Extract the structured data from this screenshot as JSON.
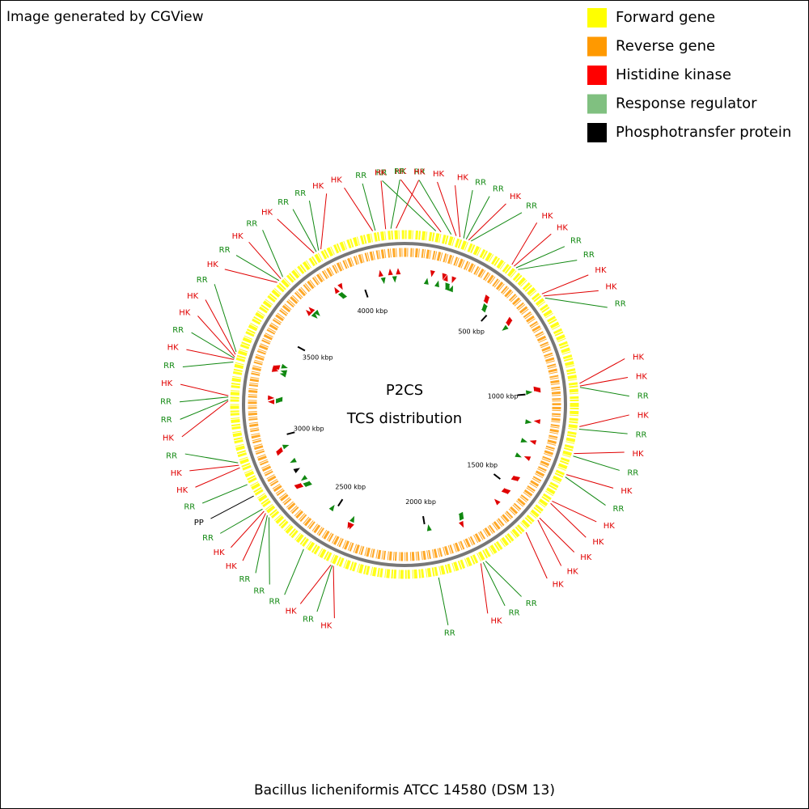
{
  "header": {
    "credit": "Image generated by CGView"
  },
  "legend": [
    {
      "label": "Forward gene",
      "color": "#ffff00"
    },
    {
      "label": "Reverse gene",
      "color": "#ff9900"
    },
    {
      "label": "Histidine kinase",
      "color": "#ff0000"
    },
    {
      "label": "Response regulator",
      "color": "#80c080"
    },
    {
      "label": "Phosphotransfer protein",
      "color": "#000000"
    }
  ],
  "map": {
    "title": "P2CS",
    "subtitle": "TCS distribution",
    "organism": "Bacillus licheniformis ATCC 14580 (DSM 13)",
    "genome_length_kbp": 4222,
    "type_colors": {
      "HK": "#e00000",
      "RR": "#118811",
      "PP": "#000000"
    },
    "ruler": [
      {
        "value": 500,
        "label": "500 kbp"
      },
      {
        "value": 1000,
        "label": "1000 kbp"
      },
      {
        "value": 1500,
        "label": "1500 kbp"
      },
      {
        "value": 2000,
        "label": "2000 kbp"
      },
      {
        "value": 2500,
        "label": "2500 kbp"
      },
      {
        "value": 3000,
        "label": "3000 kbp"
      },
      {
        "value": 3500,
        "label": "3500 kbp"
      },
      {
        "value": 4000,
        "label": "4000 kbp"
      }
    ],
    "features": [
      {
        "position": 120,
        "label": "RR"
      },
      {
        "position": 140,
        "label": "HK"
      },
      {
        "position": 180,
        "label": "RR"
      },
      {
        "position": 200,
        "label": "HK"
      },
      {
        "position": 215,
        "label": "HK"
      },
      {
        "position": 230,
        "label": "RR"
      },
      {
        "position": 240,
        "label": "RR"
      },
      {
        "position": 250,
        "label": "HK"
      },
      {
        "position": 260,
        "label": "RR"
      },
      {
        "position": 440,
        "label": "HK"
      },
      {
        "position": 450,
        "label": "HK"
      },
      {
        "position": 460,
        "label": "RR"
      },
      {
        "position": 470,
        "label": "RR"
      },
      {
        "position": 600,
        "label": "HK"
      },
      {
        "position": 610,
        "label": "HK"
      },
      {
        "position": 620,
        "label": "RR"
      },
      {
        "position": 975,
        "label": "HK"
      },
      {
        "position": 985,
        "label": "HK"
      },
      {
        "position": 990,
        "label": "RR"
      },
      {
        "position": 1140,
        "label": "HK"
      },
      {
        "position": 1150,
        "label": "RR"
      },
      {
        "position": 1245,
        "label": "HK"
      },
      {
        "position": 1255,
        "label": "RR"
      },
      {
        "position": 1330,
        "label": "HK"
      },
      {
        "position": 1340,
        "label": "RR"
      },
      {
        "position": 1445,
        "label": "HK"
      },
      {
        "position": 1455,
        "label": "HK"
      },
      {
        "position": 1525,
        "label": "HK"
      },
      {
        "position": 1535,
        "label": "HK"
      },
      {
        "position": 1600,
        "label": "HK"
      },
      {
        "position": 1790,
        "label": "RR"
      },
      {
        "position": 1800,
        "label": "RR"
      },
      {
        "position": 1810,
        "label": "HK"
      },
      {
        "position": 1980,
        "label": "RR"
      },
      {
        "position": 2390,
        "label": "HK"
      },
      {
        "position": 2395,
        "label": "RR"
      },
      {
        "position": 2400,
        "label": "HK"
      },
      {
        "position": 2520,
        "label": "RR"
      },
      {
        "position": 2700,
        "label": "RR"
      },
      {
        "position": 2710,
        "label": "RR"
      },
      {
        "position": 2720,
        "label": "HK"
      },
      {
        "position": 2730,
        "label": "HK"
      },
      {
        "position": 2740,
        "label": "RR"
      },
      {
        "position": 2800,
        "label": "PP"
      },
      {
        "position": 2850,
        "label": "RR"
      },
      {
        "position": 2920,
        "label": "HK"
      },
      {
        "position": 2930,
        "label": "HK"
      },
      {
        "position": 2940,
        "label": "RR"
      },
      {
        "position": 3180,
        "label": "HK"
      },
      {
        "position": 3185,
        "label": "RR"
      },
      {
        "position": 3195,
        "label": "RR"
      },
      {
        "position": 3200,
        "label": "HK"
      },
      {
        "position": 3330,
        "label": "RR"
      },
      {
        "position": 3340,
        "label": "HK"
      },
      {
        "position": 3345,
        "label": "RR"
      },
      {
        "position": 3350,
        "label": "HK"
      },
      {
        "position": 3360,
        "label": "HK"
      },
      {
        "position": 3370,
        "label": "RR"
      },
      {
        "position": 3680,
        "label": "HK"
      },
      {
        "position": 3690,
        "label": "RR"
      },
      {
        "position": 3700,
        "label": "HK"
      },
      {
        "position": 3710,
        "label": "RR"
      },
      {
        "position": 3860,
        "label": "HK"
      },
      {
        "position": 3870,
        "label": "RR"
      },
      {
        "position": 3880,
        "label": "RR"
      },
      {
        "position": 3890,
        "label": "HK"
      },
      {
        "position": 4100,
        "label": "HK"
      },
      {
        "position": 4110,
        "label": "RR"
      },
      {
        "position": 4150,
        "label": "HK"
      },
      {
        "position": 4170,
        "label": "RR"
      },
      {
        "position": 4190,
        "label": "HK"
      }
    ]
  }
}
